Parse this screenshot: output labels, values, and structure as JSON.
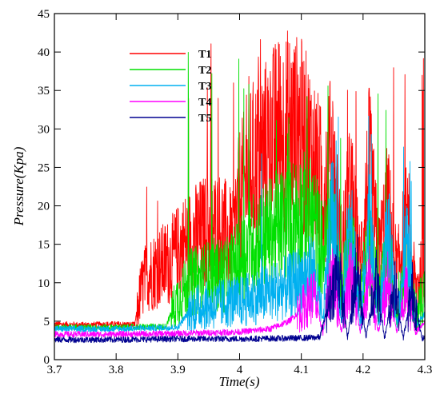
{
  "chart_data": {
    "type": "line",
    "title": "",
    "xlabel": "Time(s)",
    "ylabel": "Pressure(Kpa)",
    "xlim": [
      3.7,
      4.3
    ],
    "ylim": [
      0,
      45
    ],
    "x_ticks": [
      "3.7",
      "3.8",
      "3.9",
      "4",
      "4.1",
      "4.2",
      "4.3"
    ],
    "y_ticks": [
      "0",
      "5",
      "10",
      "15",
      "20",
      "25",
      "30",
      "35",
      "40",
      "45"
    ],
    "grid": false,
    "legend_position": "top-left inside",
    "series": [
      {
        "name": "T1",
        "color": "#ff0000",
        "x": [
          3.7,
          3.75,
          3.8,
          3.83,
          3.84,
          3.85,
          3.87,
          3.89,
          3.91,
          3.93,
          3.95,
          3.97,
          3.99,
          4.0,
          4.02,
          4.04,
          4.06,
          4.08,
          4.1,
          4.12,
          4.135,
          4.15,
          4.165,
          4.18,
          4.195,
          4.21,
          4.225,
          4.24,
          4.255,
          4.27,
          4.285,
          4.3
        ],
        "values": [
          4.6,
          4.5,
          4.6,
          4.5,
          9.0,
          11.0,
          12.0,
          13.0,
          15.0,
          16.0,
          17.0,
          17.0,
          15.0,
          21.0,
          25.0,
          27.0,
          29.0,
          30.0,
          29.0,
          26.0,
          22.0,
          26.0,
          14.0,
          22.0,
          12.0,
          25.0,
          13.0,
          20.0,
          11.0,
          18.0,
          9.0,
          12.0
        ],
        "peaks": [
          24.8,
          39.5,
          40.4,
          40.3,
          41.3,
          41.7,
          38.6
        ]
      },
      {
        "name": "T2",
        "color": "#00e000",
        "x": [
          3.7,
          3.8,
          3.88,
          3.9,
          3.92,
          3.94,
          3.96,
          3.98,
          4.0,
          4.02,
          4.04,
          4.06,
          4.08,
          4.1,
          4.12,
          4.135,
          4.15,
          4.165,
          4.18,
          4.195,
          4.21,
          4.225,
          4.24,
          4.255,
          4.27,
          4.285,
          4.3
        ],
        "values": [
          4.2,
          4.2,
          4.3,
          8.0,
          10.0,
          10.5,
          11.0,
          11.0,
          13.0,
          15.0,
          16.0,
          17.0,
          18.0,
          19.0,
          18.0,
          14.0,
          17.0,
          9.0,
          16.0,
          8.0,
          15.0,
          8.0,
          13.0,
          7.0,
          12.0,
          6.0,
          9.0
        ],
        "peaks": [
          34.7,
          40.0,
          40.4,
          34.5
        ]
      },
      {
        "name": "T3",
        "color": "#00b0f0",
        "x": [
          3.7,
          3.8,
          3.9,
          3.92,
          3.94,
          3.96,
          3.98,
          4.0,
          4.02,
          4.04,
          4.06,
          4.08,
          4.1,
          4.12,
          4.135,
          4.15,
          4.165,
          4.18,
          4.195,
          4.21,
          4.225,
          4.24,
          4.255,
          4.27,
          4.285,
          4.3
        ],
        "values": [
          4.0,
          4.0,
          4.2,
          6.5,
          7.0,
          7.0,
          7.5,
          7.5,
          8.0,
          8.5,
          9.0,
          9.5,
          10.5,
          11.5,
          5.0,
          20.0,
          4.5,
          20.0,
          4.5,
          18.0,
          4.5,
          17.0,
          4.5,
          15.0,
          4.5,
          6.0
        ],
        "peaks": [
          33.0,
          28.0,
          30.0
        ]
      },
      {
        "name": "T4",
        "color": "#ff00ff",
        "x": [
          3.7,
          3.8,
          3.9,
          3.95,
          4.0,
          4.05,
          4.08,
          4.1,
          4.12,
          4.135,
          4.15,
          4.165,
          4.18,
          4.195,
          4.21,
          4.225,
          4.24,
          4.255,
          4.27,
          4.285,
          4.3
        ],
        "values": [
          3.3,
          3.3,
          3.4,
          3.5,
          3.6,
          4.0,
          5.0,
          6.5,
          8.5,
          3.5,
          12.0,
          3.5,
          12.0,
          3.5,
          11.0,
          3.5,
          10.0,
          3.5,
          9.0,
          3.5,
          5.0
        ],
        "peaks": []
      },
      {
        "name": "T5",
        "color": "#000090",
        "x": [
          3.7,
          3.8,
          3.9,
          4.0,
          4.1,
          4.13,
          4.14,
          4.16,
          4.175,
          4.19,
          4.205,
          4.22,
          4.235,
          4.25,
          4.265,
          4.28,
          4.295,
          4.3
        ],
        "values": [
          2.6,
          2.6,
          2.7,
          2.7,
          2.8,
          2.9,
          6.0,
          12.0,
          2.8,
          12.0,
          2.8,
          11.0,
          2.8,
          10.0,
          2.8,
          9.0,
          2.8,
          2.8
        ],
        "peaks": []
      }
    ]
  }
}
